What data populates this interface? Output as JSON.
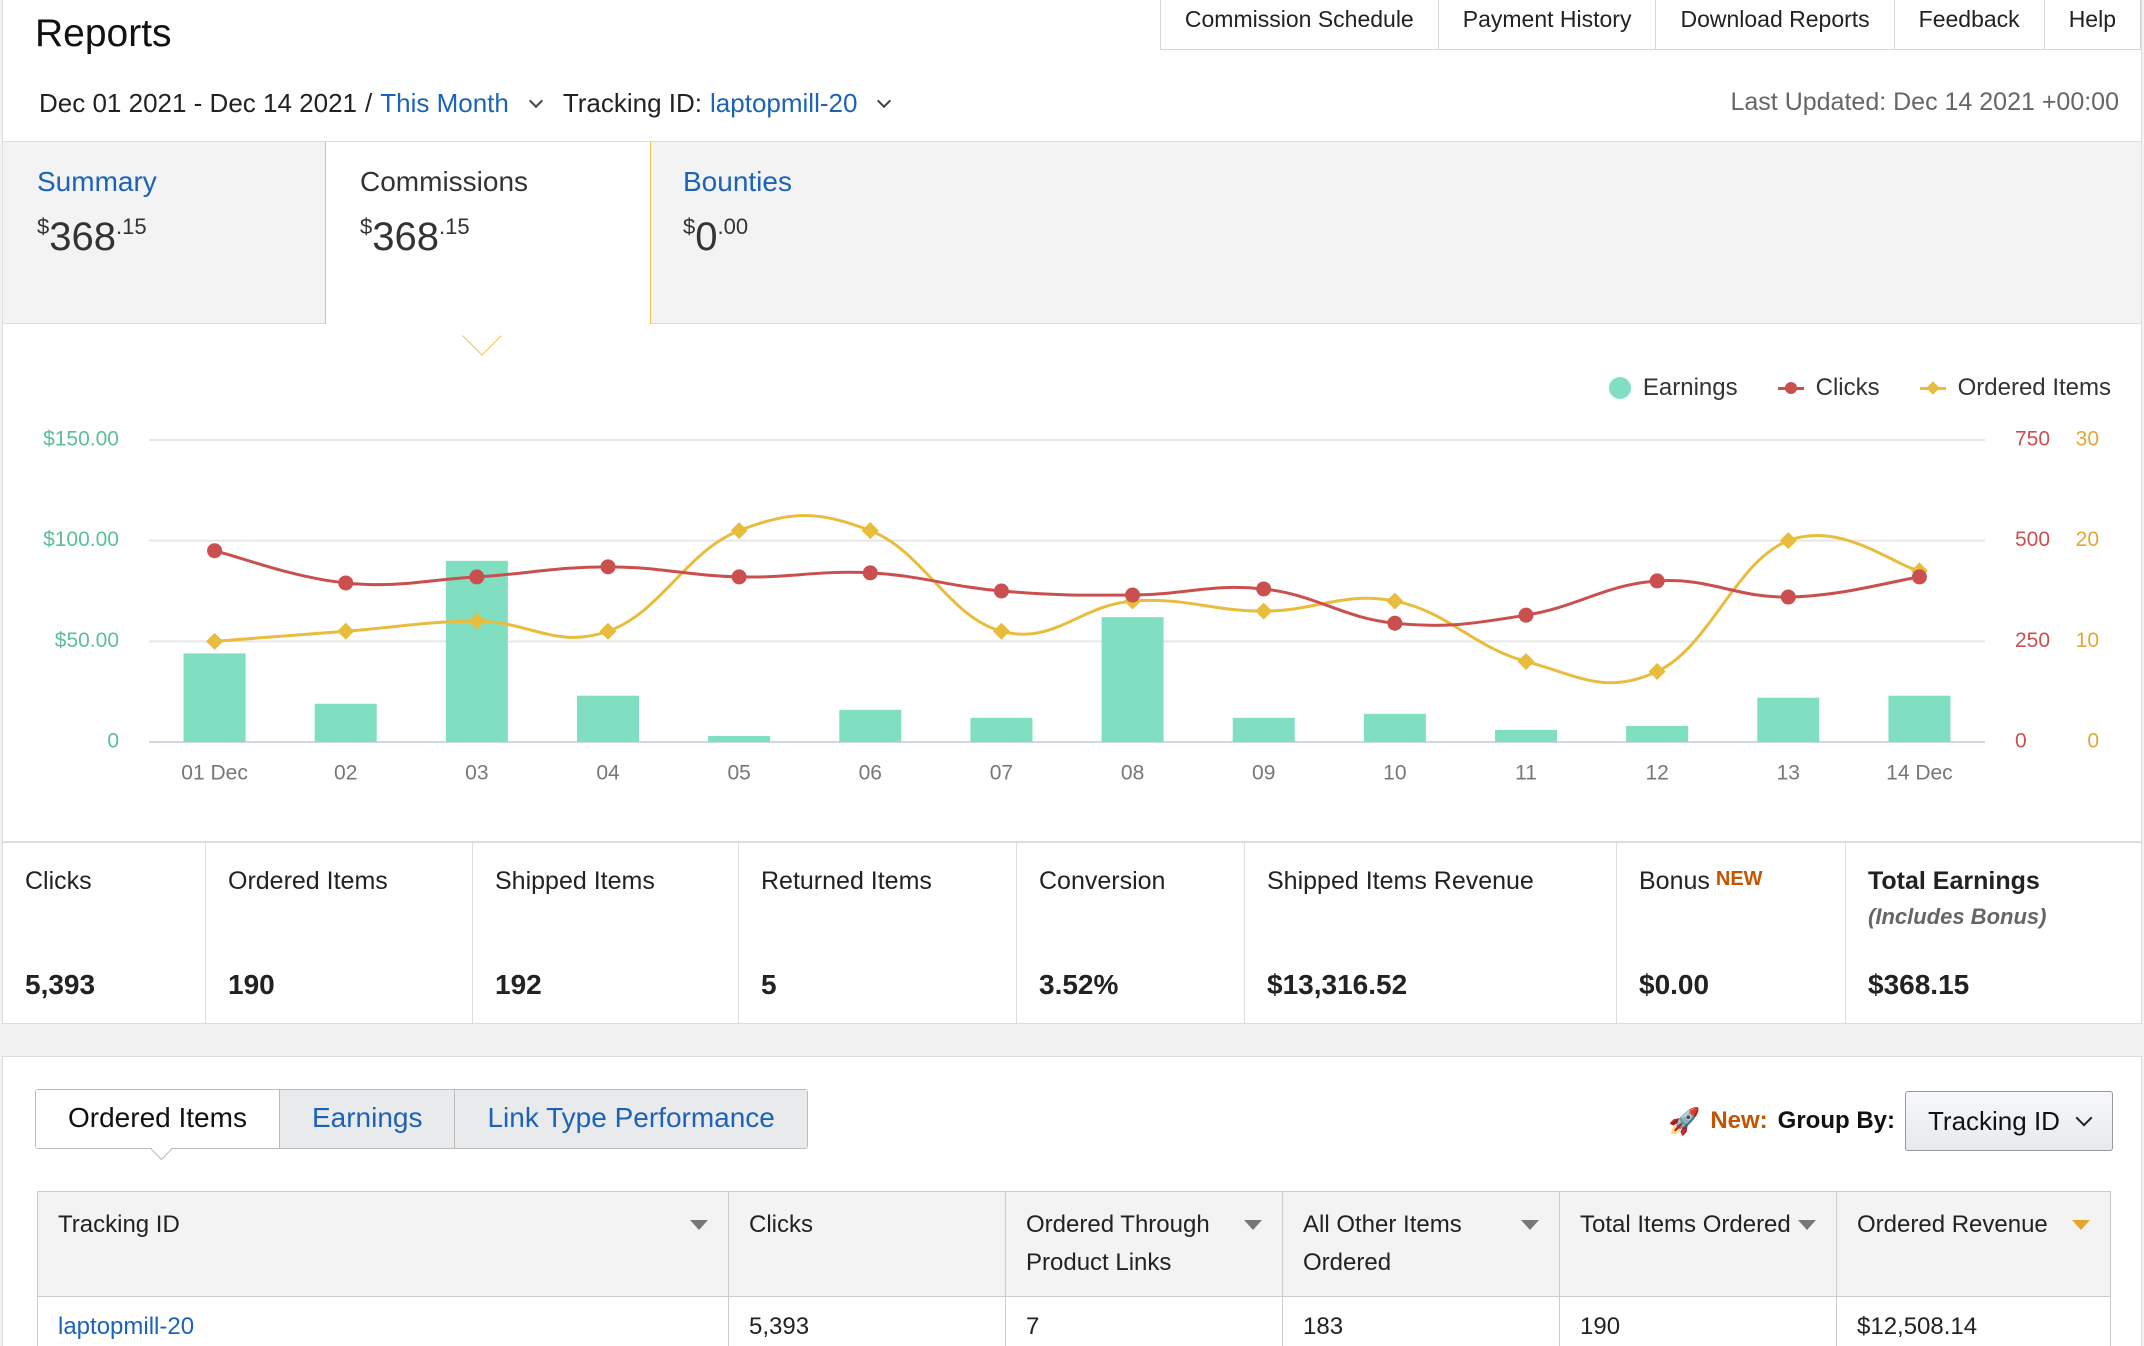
{
  "header": {
    "title": "Reports",
    "top_links": [
      "Commission Schedule",
      "Payment History",
      "Download Reports",
      "Feedback",
      "Help"
    ],
    "date_range": "Dec 01 2021 - Dec 14 2021",
    "date_separator": "/",
    "date_preset": "This Month",
    "tracking_label": "Tracking ID:",
    "tracking_value": "laptopmill-20",
    "last_updated": "Last Updated: Dec 14 2021 +00:00"
  },
  "summary_tabs": [
    {
      "label": "Summary",
      "currency": "$",
      "whole": "368",
      "cents": ".15"
    },
    {
      "label": "Commissions",
      "currency": "$",
      "whole": "368",
      "cents": ".15"
    },
    {
      "label": "Bounties",
      "currency": "$",
      "whole": "0",
      "cents": ".00"
    }
  ],
  "chart_data": {
    "type": "bar",
    "categories": [
      "01 Dec",
      "02",
      "03",
      "04",
      "05",
      "06",
      "07",
      "08",
      "09",
      "10",
      "11",
      "12",
      "13",
      "14 Dec"
    ],
    "legend": [
      "Earnings",
      "Clicks",
      "Ordered Items"
    ],
    "y_left_ticks": [
      "$150.00",
      "$100.00",
      "$50.00",
      "0"
    ],
    "y_right_clicks_ticks": [
      "750",
      "500",
      "250",
      "0"
    ],
    "y_right_items_ticks": [
      "30",
      "20",
      "10",
      "0"
    ],
    "y_left_lim": [
      0,
      150
    ],
    "y_clicks_lim": [
      0,
      750
    ],
    "y_items_lim": [
      0,
      30
    ],
    "series": [
      {
        "name": "Earnings",
        "kind": "bar",
        "axis": "left",
        "values": [
          44,
          19,
          90,
          23,
          3,
          16,
          12,
          62,
          12,
          14,
          6,
          8,
          22,
          23
        ]
      },
      {
        "name": "Clicks",
        "kind": "line",
        "axis": "clicks",
        "values": [
          475,
          395,
          410,
          435,
          410,
          420,
          375,
          365,
          380,
          295,
          315,
          400,
          360,
          410
        ]
      },
      {
        "name": "Ordered Items",
        "kind": "line",
        "axis": "items",
        "values": [
          10,
          11,
          12,
          11,
          21,
          21,
          11,
          14,
          13,
          14,
          8,
          7,
          20,
          17
        ]
      }
    ],
    "colors": {
      "earnings": "#80dfc0",
      "clicks": "#c9504f",
      "items": "#e8bc3c",
      "left_axis": "#5cbf96",
      "clicks_axis": "#c9504f",
      "items_axis": "#e0a83a",
      "grid": "#e6e6e6"
    }
  },
  "metrics": [
    {
      "label": "Clicks",
      "value": "5,393"
    },
    {
      "label": "Ordered Items",
      "value": "190"
    },
    {
      "label": "Shipped Items",
      "value": "192"
    },
    {
      "label": "Returned Items",
      "value": "5"
    },
    {
      "label": "Conversion",
      "value": "3.52%"
    },
    {
      "label": "Shipped Items Revenue",
      "value": "$13,316.52"
    },
    {
      "label": "Bonus",
      "badge": "NEW",
      "value": "$0.00"
    },
    {
      "label": "Total Earnings",
      "sub": "(Includes Bonus)",
      "value": "$368.15"
    }
  ],
  "table_tabs": [
    "Ordered Items",
    "Earnings",
    "Link Type Performance"
  ],
  "group_by": {
    "new_label": "New:",
    "label": "Group By:",
    "selected": "Tracking ID"
  },
  "table": {
    "headers": [
      "Tracking ID",
      "Clicks",
      "Ordered Through Product Links",
      "All Other Items Ordered",
      "Total Items Ordered",
      "Ordered Revenue"
    ],
    "rows": [
      [
        "laptopmill-20",
        "5,393",
        "7",
        "183",
        "190",
        "$12,508.14"
      ]
    ]
  }
}
